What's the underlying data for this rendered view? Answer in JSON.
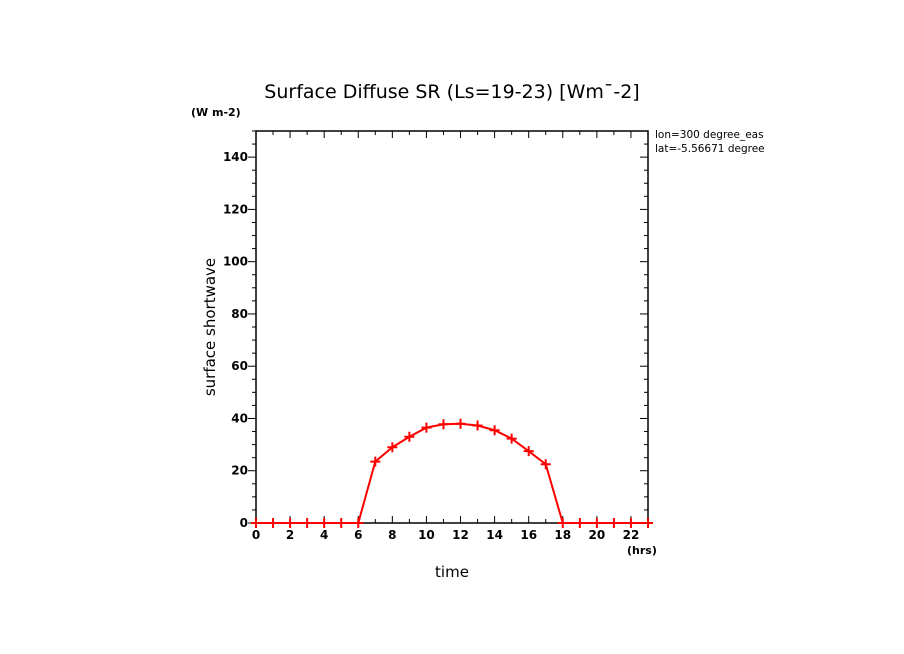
{
  "chart_data": {
    "type": "line",
    "title": "Surface Diffuse SR (Ls=19-23) [Wm¯-2]",
    "ylabel": "surface shortwave",
    "xlabel": "time",
    "y_unit": "(W m-2)",
    "x_unit": "(hrs)",
    "annotations": [
      "lon=300 degree_eas",
      "lat=-5.56671 degree"
    ],
    "xlim": [
      0,
      23
    ],
    "ylim": [
      0,
      150
    ],
    "x_ticks": [
      0,
      2,
      4,
      6,
      8,
      10,
      12,
      14,
      16,
      18,
      20,
      22
    ],
    "y_ticks": [
      0,
      20,
      40,
      60,
      80,
      100,
      120,
      140
    ],
    "grid": false,
    "line_color": "#ff0000",
    "series": [
      {
        "x": [
          0,
          1,
          2,
          3,
          4,
          5,
          6,
          7,
          8,
          9,
          10,
          11,
          12,
          13,
          14,
          15,
          16,
          17,
          18,
          19,
          20,
          21,
          22,
          23
        ],
        "values": [
          0,
          0,
          0,
          0,
          0,
          0,
          0,
          23.5,
          29,
          33,
          36.5,
          37.8,
          38,
          37.3,
          35.5,
          32.3,
          27.5,
          22.5,
          0,
          0,
          0,
          0,
          0,
          0
        ]
      }
    ]
  }
}
